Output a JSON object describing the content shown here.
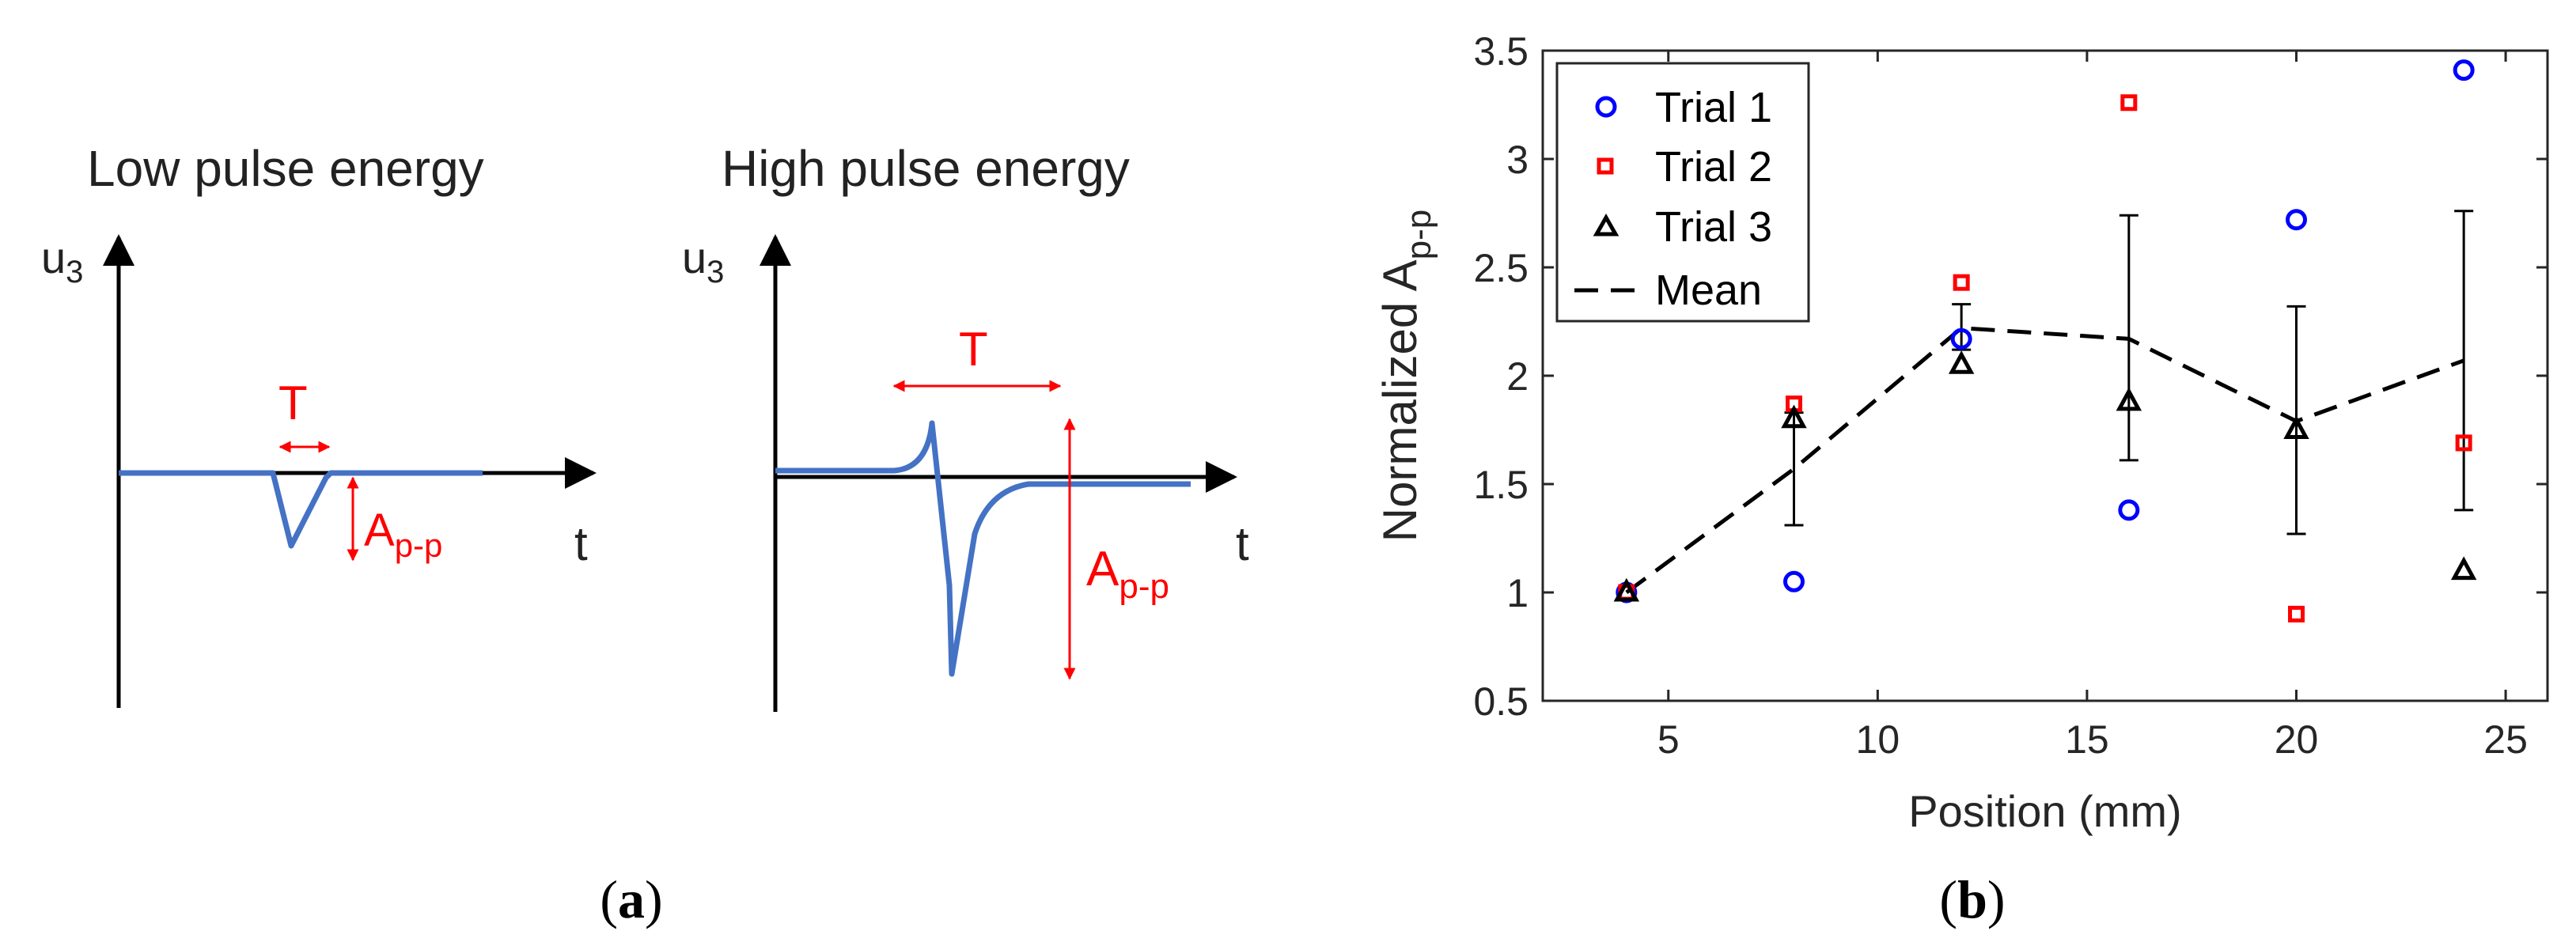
{
  "panel_a": {
    "label_open": "(",
    "label_letter": "a",
    "label_close": ")",
    "low": {
      "title": "Low pulse energy",
      "y_axis_base": "u",
      "y_axis_sub": "3",
      "x_axis": "t",
      "width_label": "T",
      "amp_base": "A",
      "amp_sub": "p-p"
    },
    "high": {
      "title": "High pulse energy",
      "y_axis_base": "u",
      "y_axis_sub": "3",
      "x_axis": "t",
      "width_label": "T",
      "amp_base": "A",
      "amp_sub": "p-p"
    }
  },
  "panel_b": {
    "label_open": "(",
    "label_letter": "b",
    "label_close": ")"
  },
  "colors": {
    "trial1": "#0000ff",
    "trial2": "#ff0000",
    "trial3": "#000000",
    "signal": "#4472c4",
    "annotation": "#ff0000"
  },
  "chart_data": {
    "type": "scatter",
    "xlabel": "Position (mm)",
    "ylabel_base": "Normalized A",
    "ylabel_sub": "p-p",
    "xlim": [
      2,
      26
    ],
    "ylim": [
      0.5,
      3.5
    ],
    "xticks": [
      5,
      10,
      15,
      20,
      25
    ],
    "yticks": [
      0.5,
      1,
      1.5,
      2,
      2.5,
      3,
      3.5
    ],
    "ytick_labels": [
      "0.5",
      "1",
      "1.5",
      "2",
      "2.5",
      "3",
      "3.5"
    ],
    "legend_position": "top-left",
    "x": [
      4,
      8,
      12,
      16,
      20,
      24
    ],
    "series": [
      {
        "name": "Trial 1",
        "marker": "circle",
        "values": [
          1.0,
          1.05,
          2.17,
          1.38,
          2.72,
          3.41
        ]
      },
      {
        "name": "Trial 2",
        "marker": "square",
        "values": [
          1.0,
          1.87,
          2.43,
          3.26,
          0.9,
          1.69
        ]
      },
      {
        "name": "Trial 3",
        "marker": "triangle",
        "values": [
          1.0,
          1.8,
          2.05,
          1.88,
          1.75,
          1.1
        ]
      },
      {
        "name": "Mean",
        "marker": "dashed-line",
        "values": [
          1.0,
          1.57,
          2.22,
          2.17,
          1.79,
          2.07
        ],
        "err_low": [
          1.0,
          1.31,
          2.12,
          1.61,
          1.27,
          1.38
        ],
        "err_high": [
          1.0,
          1.83,
          2.33,
          2.74,
          2.32,
          2.76
        ]
      }
    ]
  }
}
